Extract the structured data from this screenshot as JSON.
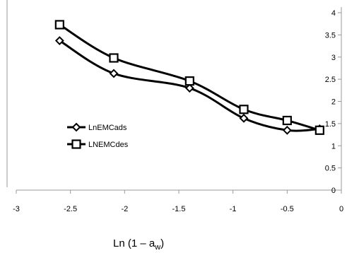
{
  "chart_data": {
    "type": "line",
    "title": "",
    "xlabel": "Ln (1 – a",
    "xlabel_sub": "w",
    "xlabel_close": ")",
    "ylabel": "",
    "xlim": [
      -3,
      0
    ],
    "ylim": [
      0,
      4
    ],
    "x_ticks": [
      "-3",
      "-2.5",
      "-2",
      "-1.5",
      "-1",
      "-0.5",
      "0"
    ],
    "y_ticks": [
      "0",
      "0.5",
      "1",
      "1.5",
      "2",
      "2.5",
      "3",
      "3.5",
      "4"
    ],
    "grid": false,
    "legend_position": "left-center",
    "series": [
      {
        "name": "LnEMCads",
        "marker": "diamond",
        "color": "#000000",
        "x": [
          -2.6,
          -2.1,
          -1.4,
          -0.9,
          -0.5,
          -0.2
        ],
        "y": [
          3.37,
          2.63,
          2.3,
          1.62,
          1.35,
          1.38
        ]
      },
      {
        "name": "LNEMCdes",
        "marker": "square",
        "color": "#000000",
        "x": [
          -2.6,
          -2.1,
          -1.4,
          -0.9,
          -0.5,
          -0.2
        ],
        "y": [
          3.73,
          2.98,
          2.46,
          1.82,
          1.57,
          1.35
        ]
      }
    ]
  }
}
